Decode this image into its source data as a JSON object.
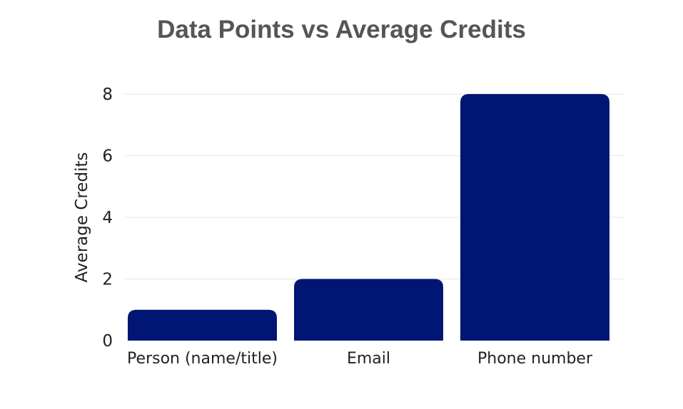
{
  "chart_data": {
    "type": "bar",
    "title": "Data Points vs Average Credits",
    "xlabel": "",
    "ylabel": "Average Credits",
    "categories": [
      "Person (name/title)",
      "Email",
      "Phone number"
    ],
    "values": [
      1,
      2,
      8
    ],
    "ylim": [
      0,
      8
    ],
    "yticks": [
      0,
      2,
      4,
      6,
      8
    ],
    "grid": true,
    "legend": "none",
    "colors": {
      "bar": "#001574",
      "grid": "#e6e6e6",
      "title": "#555555",
      "text": "#222222"
    }
  }
}
